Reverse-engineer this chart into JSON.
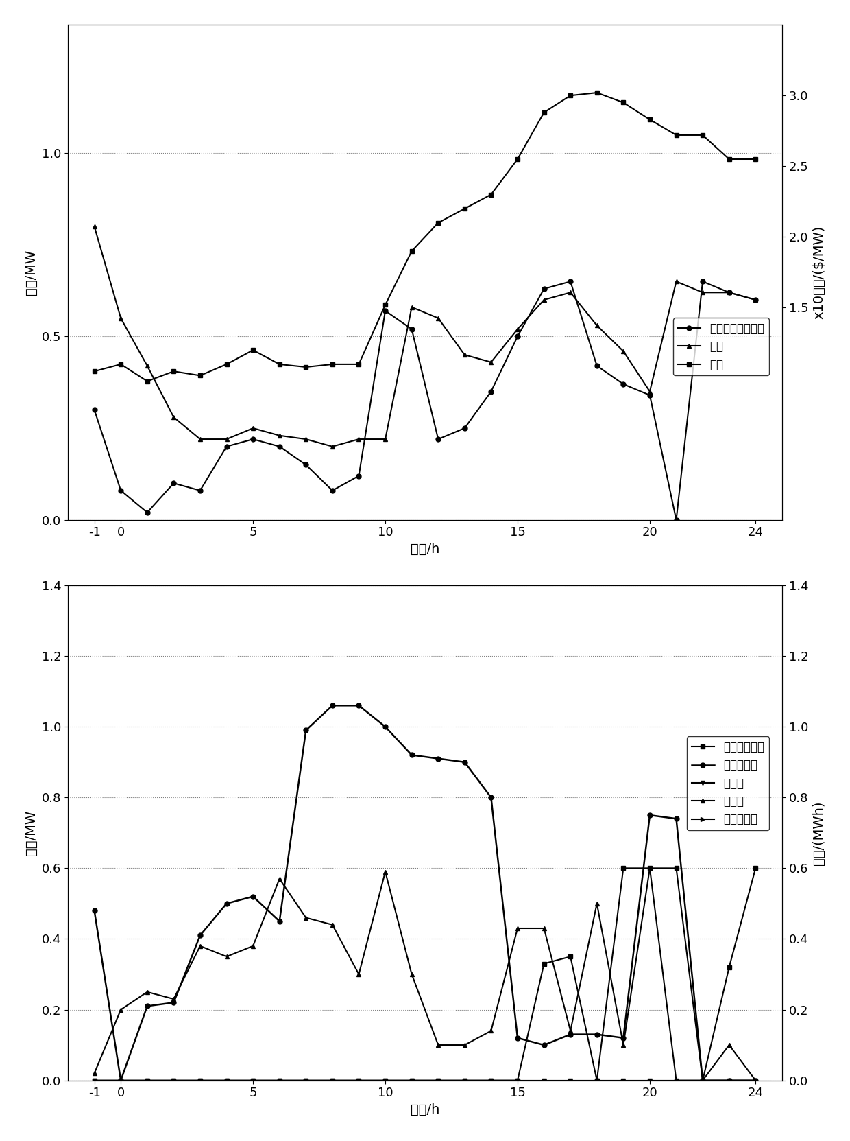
{
  "top_chart": {
    "x": [
      -1,
      0,
      1,
      2,
      3,
      4,
      5,
      6,
      7,
      8,
      9,
      10,
      11,
      12,
      13,
      14,
      15,
      16,
      17,
      18,
      19,
      20,
      21,
      22,
      23,
      24
    ],
    "renewable": [
      0.3,
      0.08,
      0.02,
      0.1,
      0.08,
      0.2,
      0.22,
      0.2,
      0.15,
      0.08,
      0.12,
      0.57,
      0.52,
      0.22,
      0.25,
      0.35,
      0.5,
      0.63,
      0.65,
      0.42,
      0.37,
      0.34,
      0.0,
      0.65,
      0.62,
      0.6
    ],
    "load": [
      0.8,
      0.55,
      0.42,
      0.28,
      0.22,
      0.22,
      0.25,
      0.23,
      0.22,
      0.2,
      0.22,
      0.22,
      0.58,
      0.55,
      0.45,
      0.43,
      0.52,
      0.6,
      0.62,
      0.53,
      0.46,
      0.35,
      0.65,
      0.62,
      0.62,
      0.6
    ],
    "price": [
      1.05,
      1.1,
      0.98,
      1.05,
      1.02,
      1.1,
      1.2,
      1.1,
      1.08,
      1.1,
      1.1,
      1.52,
      1.9,
      2.1,
      2.2,
      2.3,
      2.55,
      2.88,
      3.0,
      3.02,
      2.95,
      2.83,
      2.72,
      2.72,
      2.55,
      2.55
    ],
    "ylabel_power": "功率/MW",
    "ylabel_price": "x10电价/($/MW)",
    "xlabel": "时间/h",
    "xlim": [
      -2,
      25
    ],
    "ylim_left": [
      0,
      1.35
    ],
    "ylim_right": [
      0.0,
      3.5
    ],
    "yticks_left": [
      0,
      0.5,
      1.0
    ],
    "yticks_right": [
      1.5,
      2.0,
      2.5,
      3.0
    ],
    "legend_renewable": "可再生能源总出力",
    "legend_load": "负荷",
    "legend_price": "电价"
  },
  "bottom_chart": {
    "x": [
      -1,
      0,
      1,
      2,
      3,
      4,
      5,
      6,
      7,
      8,
      9,
      10,
      11,
      12,
      13,
      14,
      15,
      16,
      17,
      18,
      19,
      20,
      21,
      22,
      23,
      24
    ],
    "diesel": [
      0.0,
      0.0,
      0.0,
      0.0,
      0.0,
      0.0,
      0.0,
      0.0,
      0.0,
      0.0,
      0.0,
      0.0,
      0.0,
      0.0,
      0.0,
      0.0,
      0.0,
      0.33,
      0.35,
      0.0,
      0.6,
      0.6,
      0.6,
      0.0,
      0.32,
      0.6
    ],
    "storage": [
      0.48,
      0.0,
      0.21,
      0.22,
      0.41,
      0.5,
      0.52,
      0.45,
      0.99,
      1.06,
      1.06,
      1.0,
      0.92,
      0.91,
      0.9,
      0.8,
      0.12,
      0.1,
      0.13,
      0.13,
      0.12,
      0.75,
      0.74,
      0.0,
      0.0,
      0.0
    ],
    "sell": [
      0.0,
      0.0,
      0.0,
      0.0,
      0.0,
      0.0,
      0.0,
      0.0,
      0.0,
      0.0,
      0.0,
      0.0,
      0.0,
      0.0,
      0.0,
      0.0,
      0.0,
      0.0,
      0.0,
      0.0,
      0.0,
      0.0,
      0.0,
      0.0,
      0.0,
      0.0
    ],
    "buy": [
      0.02,
      0.2,
      0.25,
      0.23,
      0.38,
      0.35,
      0.38,
      0.57,
      0.46,
      0.44,
      0.3,
      0.59,
      0.3,
      0.1,
      0.1,
      0.14,
      0.43,
      0.43,
      0.14,
      0.5,
      0.1,
      0.6,
      0.0,
      0.0,
      0.1,
      0.0
    ],
    "interrupt": [
      0.0,
      0.0,
      0.0,
      0.0,
      0.0,
      0.0,
      0.0,
      0.0,
      0.0,
      0.0,
      0.0,
      0.0,
      0.0,
      0.0,
      0.0,
      0.0,
      0.0,
      0.0,
      0.0,
      0.0,
      0.0,
      0.0,
      0.0,
      0.0,
      0.0,
      0.0
    ],
    "ylabel_power": "功率/MW",
    "ylabel_energy": "电量/(MWh)",
    "xlabel": "时间/h",
    "xlim": [
      -2,
      25
    ],
    "ylim": [
      0,
      1.4
    ],
    "yticks": [
      0,
      0.2,
      0.4,
      0.6,
      0.8,
      1.0,
      1.2,
      1.4
    ],
    "legend_diesel": "柴油机总出力",
    "legend_storage": "储能总电量",
    "legend_sell": "售电量",
    "legend_buy": "购电量",
    "legend_interrupt": "中断负荷量"
  },
  "bg_color": "#ffffff"
}
